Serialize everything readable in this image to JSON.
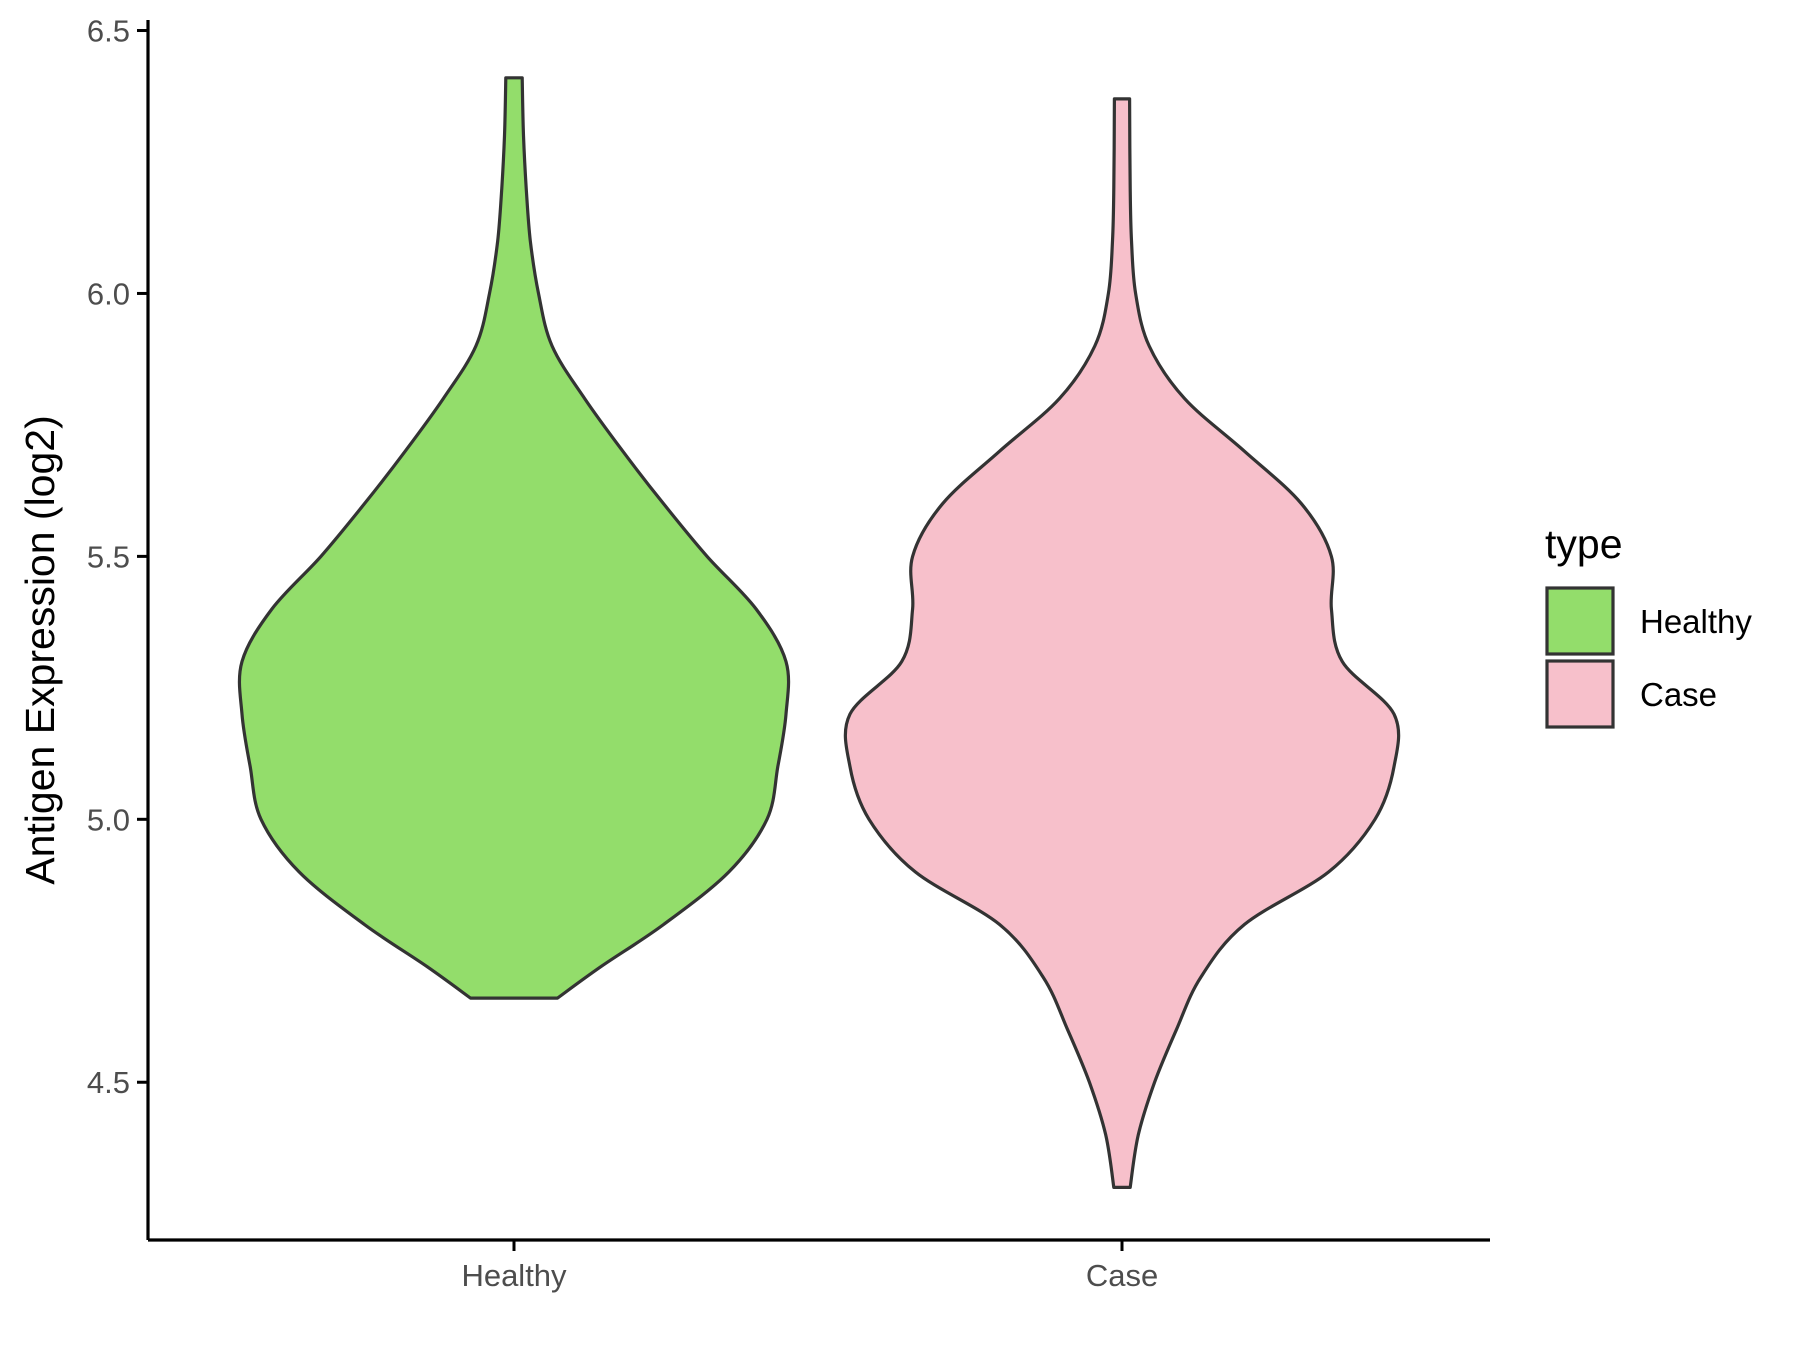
{
  "chart_data": {
    "type": "violin",
    "ylabel": "Antigen Expression (log2)",
    "xlabel": "",
    "ylim": [
      4.2,
      6.52
    ],
    "yticks": [
      4.5,
      5.0,
      5.5,
      6.0,
      6.5
    ],
    "ytick_labels": [
      "4.5",
      "5.0",
      "5.5",
      "6.0",
      "6.5"
    ],
    "categories": [
      "Healthy",
      "Case"
    ],
    "grid": false,
    "legend": {
      "title": "type",
      "position": "right",
      "entries": [
        {
          "label": "Healthy",
          "color": "#93dd6b"
        },
        {
          "label": "Case",
          "color": "#f7c0cb"
        }
      ]
    },
    "series": [
      {
        "category": "Healthy",
        "color": "#93dd6b",
        "min": 4.66,
        "max": 6.41,
        "density": [
          [
            4.66,
            0.16
          ],
          [
            4.72,
            0.32
          ],
          [
            4.8,
            0.55
          ],
          [
            4.9,
            0.79
          ],
          [
            5.0,
            0.93
          ],
          [
            5.1,
            0.97
          ],
          [
            5.2,
            1.0
          ],
          [
            5.3,
            1.0
          ],
          [
            5.4,
            0.89
          ],
          [
            5.5,
            0.71
          ],
          [
            5.6,
            0.55
          ],
          [
            5.7,
            0.4
          ],
          [
            5.8,
            0.26
          ],
          [
            5.9,
            0.14
          ],
          [
            6.0,
            0.09
          ],
          [
            6.1,
            0.06
          ],
          [
            6.2,
            0.045
          ],
          [
            6.3,
            0.035
          ],
          [
            6.41,
            0.03
          ]
        ]
      },
      {
        "category": "Case",
        "color": "#f7c0cb",
        "min": 4.3,
        "max": 6.37,
        "density": [
          [
            4.3,
            0.03
          ],
          [
            4.4,
            0.06
          ],
          [
            4.5,
            0.12
          ],
          [
            4.6,
            0.2
          ],
          [
            4.7,
            0.29
          ],
          [
            4.8,
            0.45
          ],
          [
            4.9,
            0.76
          ],
          [
            5.0,
            0.93
          ],
          [
            5.1,
            1.0
          ],
          [
            5.2,
            1.0
          ],
          [
            5.3,
            0.81
          ],
          [
            5.4,
            0.77
          ],
          [
            5.5,
            0.77
          ],
          [
            5.6,
            0.66
          ],
          [
            5.7,
            0.45
          ],
          [
            5.8,
            0.23
          ],
          [
            5.9,
            0.1
          ],
          [
            6.0,
            0.05
          ],
          [
            6.1,
            0.035
          ],
          [
            6.2,
            0.03
          ],
          [
            6.37,
            0.028
          ]
        ]
      }
    ]
  }
}
